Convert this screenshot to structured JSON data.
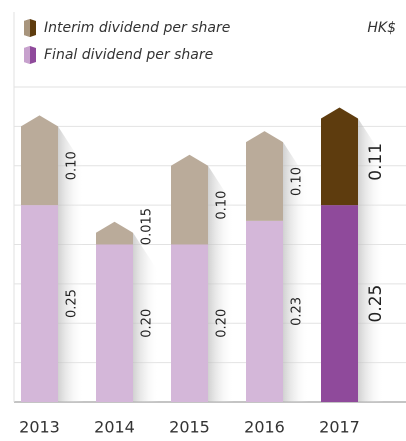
{
  "chart_data": {
    "type": "stacked-bar",
    "unit": "HK$",
    "categories": [
      "2013",
      "2014",
      "2015",
      "2016",
      "2017"
    ],
    "series": [
      {
        "name": "Final dividend per share",
        "color": "#d4b7d9",
        "colors": [
          "#d4b7d9",
          "#d4b7d9",
          "#d4b7d9",
          "#d4b7d9",
          "#8f4a9b"
        ],
        "values": [
          0.25,
          0.2,
          0.2,
          0.23,
          0.25
        ],
        "value_labels": [
          "0.25",
          "0.20",
          "0.20",
          "0.23",
          "0.25"
        ]
      },
      {
        "name": "Interim dividend per share",
        "color": "#baab9a",
        "colors": [
          "#baab9a",
          "#baab9a",
          "#baab9a",
          "#baab9a",
          "#5e3c0e"
        ],
        "values": [
          0.1,
          0.015,
          0.1,
          0.1,
          0.11
        ],
        "value_labels": [
          "0.10",
          "0.015",
          "0.10",
          "0.10",
          "0.11"
        ]
      }
    ],
    "highlight_index": 4,
    "ylim": [
      0,
      0.4
    ],
    "yticks": [
      0,
      0.05,
      0.1,
      0.15,
      0.2,
      0.25,
      0.3,
      0.35,
      0.4
    ],
    "grid": true
  }
}
